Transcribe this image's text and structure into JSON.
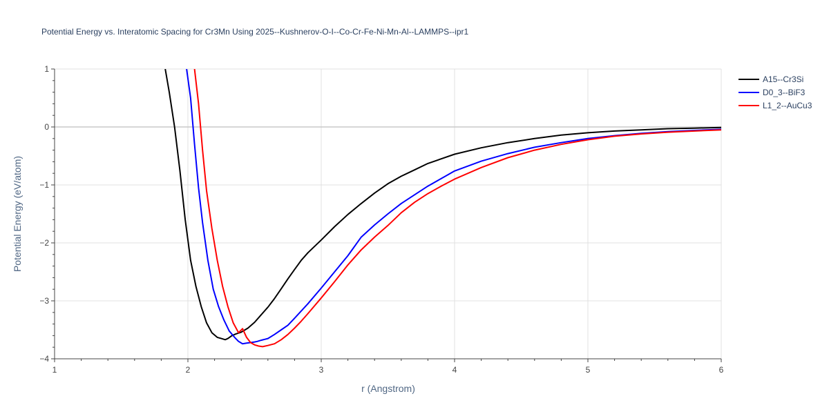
{
  "chart_data": {
    "type": "line",
    "title": "Potential Energy vs. Interatomic Spacing for Cr3Mn Using 2025--Kushnerov-O-I--Co-Cr-Fe-Ni-Mn-Al--LAMMPS--ipr1",
    "xlabel": "r (Angstrom)",
    "ylabel": "Potential Energy (eV/atom)",
    "xlim": [
      1,
      6
    ],
    "ylim": [
      -4,
      1
    ],
    "xticks": [
      1,
      2,
      3,
      4,
      5,
      6
    ],
    "xtick_labels": [
      "1",
      "2",
      "3",
      "4",
      "5",
      "6"
    ],
    "yticks": [
      -4,
      -3,
      -2,
      -1,
      0,
      1
    ],
    "ytick_labels": [
      "−4",
      "−3",
      "−2",
      "−1",
      "0",
      "1"
    ],
    "grid": true,
    "legend_position": "top-right",
    "series": [
      {
        "name": "A15--Cr3Si",
        "color": "#000000",
        "x": [
          1.83,
          1.86,
          1.9,
          1.94,
          1.98,
          2.02,
          2.06,
          2.1,
          2.14,
          2.18,
          2.22,
          2.25,
          2.28,
          2.3,
          2.33,
          2.36,
          2.4,
          2.45,
          2.5,
          2.55,
          2.6,
          2.65,
          2.7,
          2.75,
          2.8,
          2.85,
          2.9,
          3.0,
          3.1,
          3.2,
          3.3,
          3.4,
          3.5,
          3.6,
          3.7,
          3.8,
          3.9,
          4.0,
          4.2,
          4.4,
          4.6,
          4.8,
          5.0,
          5.2,
          5.4,
          5.6,
          5.8,
          6.0
        ],
        "y": [
          1.0,
          0.6,
          0.0,
          -0.75,
          -1.6,
          -2.3,
          -2.75,
          -3.1,
          -3.38,
          -3.55,
          -3.63,
          -3.65,
          -3.67,
          -3.65,
          -3.6,
          -3.57,
          -3.54,
          -3.47,
          -3.37,
          -3.24,
          -3.11,
          -2.96,
          -2.79,
          -2.62,
          -2.46,
          -2.3,
          -2.17,
          -1.95,
          -1.72,
          -1.51,
          -1.32,
          -1.14,
          -0.98,
          -0.85,
          -0.74,
          -0.63,
          -0.55,
          -0.47,
          -0.36,
          -0.27,
          -0.2,
          -0.14,
          -0.1,
          -0.07,
          -0.05,
          -0.03,
          -0.02,
          -0.01
        ]
      },
      {
        "name": "D0_3--BiF3",
        "color": "#0000ff",
        "x": [
          1.99,
          2.02,
          2.05,
          2.08,
          2.11,
          2.15,
          2.19,
          2.23,
          2.27,
          2.31,
          2.35,
          2.38,
          2.41,
          2.44,
          2.47,
          2.5,
          2.52,
          2.55,
          2.6,
          2.65,
          2.7,
          2.75,
          2.8,
          2.9,
          3.0,
          3.1,
          3.2,
          3.3,
          3.4,
          3.5,
          3.6,
          3.7,
          3.8,
          3.9,
          4.0,
          4.2,
          4.4,
          4.6,
          4.8,
          5.0,
          5.2,
          5.4,
          5.6,
          5.8,
          6.0
        ],
        "y": [
          1.0,
          0.5,
          -0.3,
          -1.05,
          -1.65,
          -2.3,
          -2.8,
          -3.1,
          -3.33,
          -3.52,
          -3.63,
          -3.7,
          -3.74,
          -3.73,
          -3.72,
          -3.71,
          -3.7,
          -3.68,
          -3.65,
          -3.58,
          -3.5,
          -3.42,
          -3.3,
          -3.05,
          -2.78,
          -2.5,
          -2.22,
          -1.9,
          -1.69,
          -1.5,
          -1.32,
          -1.17,
          -1.02,
          -0.89,
          -0.76,
          -0.59,
          -0.46,
          -0.35,
          -0.27,
          -0.2,
          -0.15,
          -0.11,
          -0.08,
          -0.06,
          -0.04
        ]
      },
      {
        "name": "L1_2--AuCu3",
        "color": "#ff0000",
        "x": [
          2.05,
          2.08,
          2.11,
          2.14,
          2.18,
          2.22,
          2.26,
          2.3,
          2.34,
          2.38,
          2.41,
          2.44,
          2.47,
          2.5,
          2.53,
          2.56,
          2.6,
          2.65,
          2.7,
          2.75,
          2.8,
          2.85,
          2.9,
          3.0,
          3.1,
          3.2,
          3.3,
          3.4,
          3.5,
          3.6,
          3.7,
          3.8,
          3.9,
          4.0,
          4.2,
          4.4,
          4.6,
          4.8,
          5.0,
          5.2,
          5.4,
          5.6,
          5.8,
          6.0
        ],
        "y": [
          1.0,
          0.4,
          -0.4,
          -1.1,
          -1.75,
          -2.3,
          -2.75,
          -3.1,
          -3.38,
          -3.55,
          -3.48,
          -3.63,
          -3.72,
          -3.76,
          -3.78,
          -3.79,
          -3.77,
          -3.74,
          -3.67,
          -3.58,
          -3.47,
          -3.35,
          -3.22,
          -2.95,
          -2.67,
          -2.38,
          -2.12,
          -1.9,
          -1.7,
          -1.48,
          -1.3,
          -1.15,
          -1.02,
          -0.9,
          -0.7,
          -0.53,
          -0.4,
          -0.3,
          -0.22,
          -0.16,
          -0.12,
          -0.09,
          -0.07,
          -0.05
        ]
      }
    ]
  }
}
